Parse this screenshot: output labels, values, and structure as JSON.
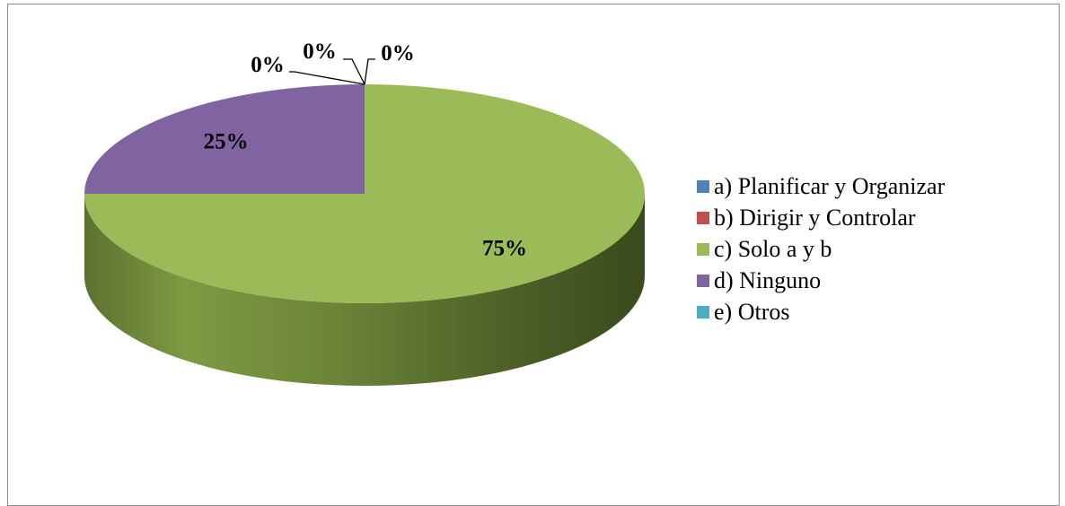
{
  "chart_data": {
    "type": "pie",
    "title": "",
    "categories": [
      "a) Planificar y Organizar",
      "b) Dirigir y Controlar",
      "c) Solo a y b",
      "d) Ninguno",
      "e) Otros"
    ],
    "values": [
      0,
      0,
      75,
      25,
      0
    ],
    "data_labels": [
      "0%",
      "0%",
      "75%",
      "25%",
      "0%"
    ],
    "colors": [
      "#4f81bd",
      "#c0504d",
      "#9bbb59",
      "#8064a2",
      "#4bacc6"
    ],
    "legend_position": "right",
    "style": "3d"
  }
}
